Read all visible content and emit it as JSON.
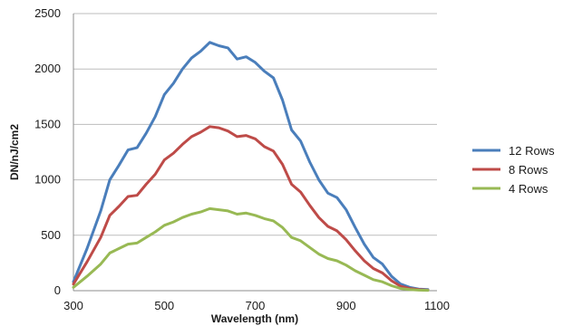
{
  "chart_data": {
    "type": "line",
    "title": "",
    "xlabel": "Wavelength (nm)",
    "ylabel": "DN/nJ/cm2",
    "xlim": [
      300,
      1100
    ],
    "ylim": [
      0,
      2500
    ],
    "x_ticks": [
      300,
      500,
      700,
      900,
      1100
    ],
    "y_ticks": [
      0,
      500,
      1000,
      1500,
      2000,
      2500
    ],
    "grid": "horizontal",
    "legend_position": "right",
    "x": [
      300,
      330,
      360,
      380,
      400,
      420,
      440,
      460,
      480,
      500,
      520,
      540,
      560,
      580,
      600,
      620,
      640,
      660,
      680,
      700,
      720,
      740,
      760,
      780,
      800,
      820,
      840,
      860,
      880,
      900,
      920,
      940,
      960,
      980,
      1000,
      1020,
      1040,
      1060,
      1080
    ],
    "series": [
      {
        "name": "12 Rows",
        "color": "#4a7ebb",
        "values": [
          80,
          380,
          720,
          1000,
          1130,
          1270,
          1290,
          1420,
          1570,
          1770,
          1870,
          2000,
          2100,
          2160,
          2240,
          2210,
          2190,
          2090,
          2110,
          2060,
          1980,
          1920,
          1720,
          1450,
          1350,
          1160,
          1000,
          880,
          840,
          730,
          570,
          420,
          300,
          240,
          130,
          60,
          30,
          15,
          10
        ]
      },
      {
        "name": "8 Rows",
        "color": "#be4b48",
        "values": [
          60,
          260,
          480,
          680,
          760,
          850,
          860,
          960,
          1050,
          1180,
          1240,
          1320,
          1390,
          1430,
          1480,
          1470,
          1440,
          1390,
          1400,
          1370,
          1300,
          1260,
          1140,
          960,
          890,
          770,
          660,
          580,
          540,
          460,
          360,
          270,
          200,
          160,
          90,
          40,
          20,
          10,
          5
        ]
      },
      {
        "name": "4 Rows",
        "color": "#98b954",
        "values": [
          30,
          130,
          240,
          340,
          380,
          420,
          430,
          480,
          530,
          590,
          620,
          660,
          690,
          710,
          740,
          730,
          720,
          690,
          700,
          680,
          650,
          630,
          570,
          480,
          450,
          390,
          330,
          290,
          270,
          230,
          180,
          140,
          100,
          80,
          45,
          20,
          10,
          5,
          3
        ]
      }
    ]
  }
}
